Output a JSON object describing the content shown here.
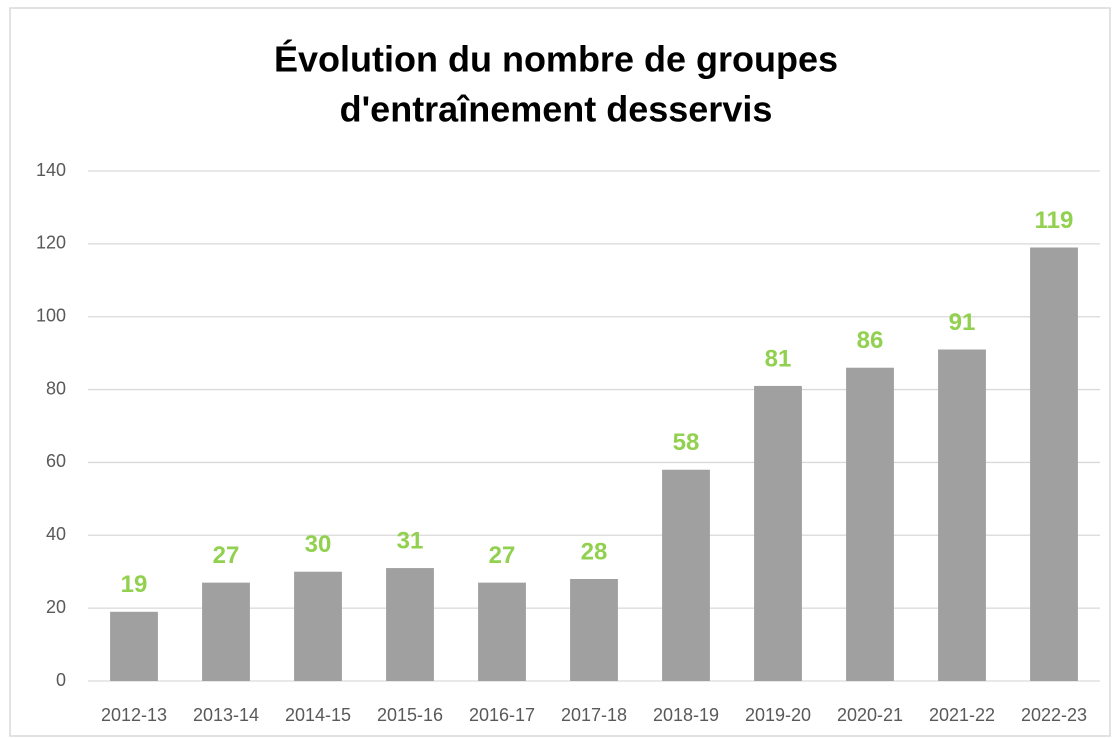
{
  "chart_data": {
    "type": "bar",
    "title": [
      "Évolution du nombre de groupes",
      "d'entraînement desservis"
    ],
    "categories": [
      "2012-13",
      "2013-14",
      "2014-15",
      "2015-16",
      "2016-17",
      "2017-18",
      "2018-19",
      "2019-20",
      "2020-21",
      "2021-22",
      "2022-23"
    ],
    "values": [
      19,
      27,
      30,
      31,
      27,
      28,
      58,
      81,
      86,
      91,
      119
    ],
    "color": "#a0a0a0",
    "label_color": "#92d050",
    "ylim": [
      0,
      140
    ],
    "yticks": [
      0,
      20,
      40,
      60,
      80,
      100,
      120,
      140
    ],
    "grid": true
  }
}
